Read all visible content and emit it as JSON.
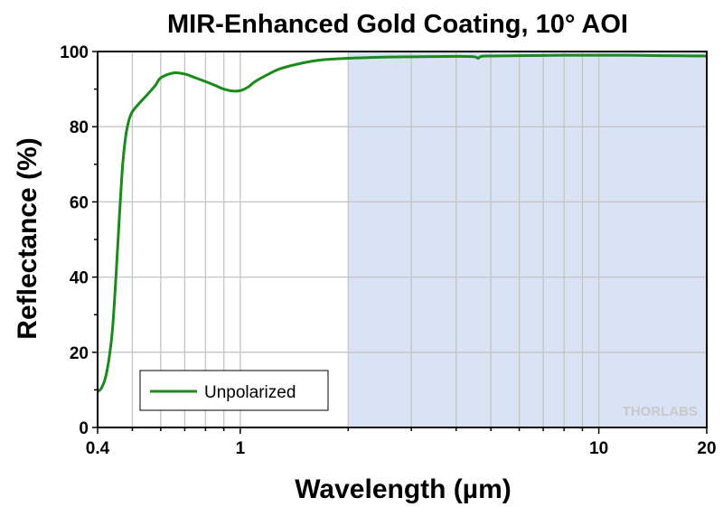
{
  "chart_data": {
    "type": "line",
    "title": "MIR-Enhanced Gold Coating, 10° AOI",
    "xlabel": "Wavelength (µm)",
    "ylabel": "Reflectance (%)",
    "x_scale": "log",
    "xlim": [
      0.4,
      20
    ],
    "ylim": [
      0,
      100
    ],
    "x_ticks": [
      0.4,
      1,
      10,
      20
    ],
    "x_tick_labels": [
      "0.4",
      "1",
      "10",
      "20"
    ],
    "y_ticks": [
      0,
      20,
      40,
      60,
      80,
      100
    ],
    "y_tick_labels": [
      "0",
      "20",
      "40",
      "60",
      "80",
      "100"
    ],
    "grid": true,
    "shaded_region": {
      "x": [
        2,
        20
      ],
      "color": "#dae3f5"
    },
    "legend": {
      "position": "bottom-left"
    },
    "series": [
      {
        "name": "Unpolarized",
        "color": "#1a8a1a",
        "x": [
          0.4,
          0.41,
          0.42,
          0.43,
          0.44,
          0.45,
          0.46,
          0.47,
          0.48,
          0.49,
          0.5,
          0.52,
          0.55,
          0.58,
          0.6,
          0.65,
          0.7,
          0.75,
          0.8,
          0.85,
          0.9,
          0.95,
          1.0,
          1.05,
          1.1,
          1.2,
          1.3,
          1.5,
          1.7,
          2.0,
          2.5,
          3.0,
          4.0,
          4.5,
          4.6,
          4.7,
          5.0,
          6.0,
          8.0,
          10.0,
          12.0,
          15.0,
          20.0
        ],
        "values": [
          9.5,
          10.5,
          13,
          18,
          26,
          40,
          56,
          70,
          78,
          82,
          84,
          86,
          88.5,
          91,
          93,
          94.3,
          94,
          93,
          92,
          91,
          90,
          89.5,
          89.6,
          90.5,
          92,
          94,
          95.5,
          97,
          97.8,
          98.2,
          98.5,
          98.6,
          98.7,
          98.6,
          98.2,
          98.7,
          98.8,
          98.9,
          99.0,
          99.0,
          99.0,
          98.9,
          98.8
        ]
      }
    ],
    "watermark": "THORLABS"
  }
}
